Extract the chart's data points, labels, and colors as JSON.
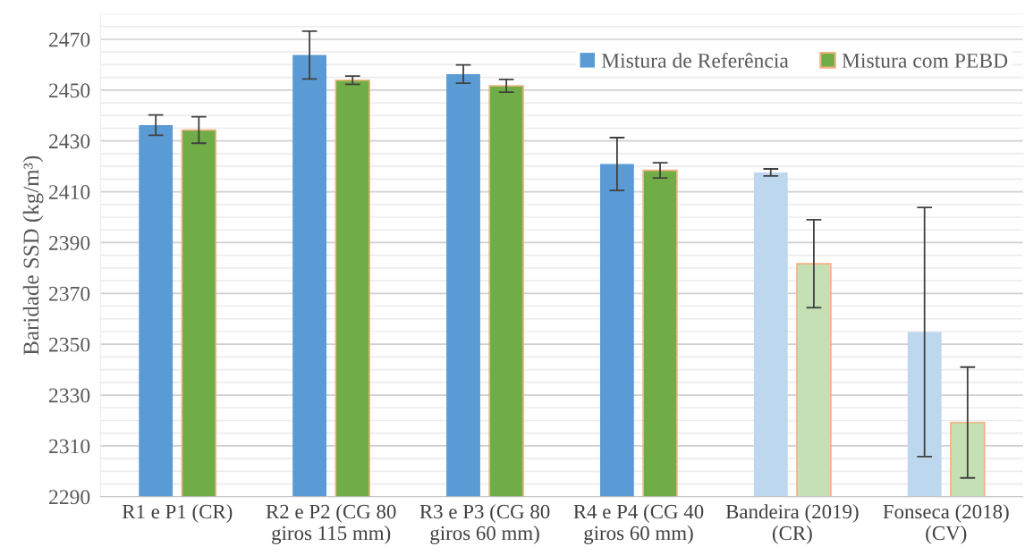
{
  "chart_data": {
    "type": "bar",
    "ylabel": "Baridade SSD (kg/m³)",
    "categories": [
      "R1 e P1 (CR)",
      "R2 e P2 (CG 80\ngiros 115 mm)",
      "R3 e P3 (CG 80\ngiros 60 mm)",
      "R4 e P4 (CG 40\ngiros 60 mm)",
      "Bandeira (2019)\n(CR)",
      "Fonseca (2018)\n(CV)"
    ],
    "series": [
      {
        "name": "Mistura de Referência",
        "color": "#5b9bd5",
        "colors": [
          "#5b9bd5",
          "#5b9bd5",
          "#5b9bd5",
          "#5b9bd5",
          "#bdd7ee",
          "#bdd7ee"
        ],
        "values": [
          2436.2,
          2463.8,
          2456.3,
          2420.9,
          2417.6,
          2354.8
        ],
        "errors": [
          4,
          9.4,
          3.6,
          10.4,
          1.4,
          49
        ]
      },
      {
        "name": "Mistura com PEBD",
        "color": "#70ad47",
        "colors": [
          "#70ad47",
          "#70ad47",
          "#70ad47",
          "#70ad47",
          "#c5e0b4",
          "#c5e0b4"
        ],
        "values": [
          2434.3,
          2453.9,
          2451.7,
          2418.4,
          2381.7,
          2319.2
        ],
        "errors": [
          5.2,
          1.6,
          2.5,
          3,
          17.3,
          21.8
        ]
      }
    ],
    "ylim": [
      2290,
      2480
    ],
    "yticks": [
      2290,
      {
        "value": 2295,
        "label": null
      },
      {
        "value": 2300,
        "label": null
      },
      {
        "value": 2305,
        "label": null
      },
      2310,
      {
        "value": 2315,
        "label": null
      },
      {
        "value": 2320,
        "label": null
      },
      {
        "value": 2325,
        "label": null
      },
      2330,
      {
        "value": 2335,
        "label": null
      },
      {
        "value": 2340,
        "label": null
      },
      {
        "value": 2345,
        "label": null
      },
      2350,
      {
        "value": 2355,
        "label": null
      },
      {
        "value": 2360,
        "label": null
      },
      {
        "value": 2365,
        "label": null
      },
      2370,
      {
        "value": 2375,
        "label": null
      },
      {
        "value": 2380,
        "label": null
      },
      {
        "value": 2385,
        "label": null
      },
      2390,
      {
        "value": 2395,
        "label": null
      },
      {
        "value": 2400,
        "label": null
      },
      {
        "value": 2405,
        "label": null
      },
      2410,
      {
        "value": 2415,
        "label": null
      },
      {
        "value": 2420,
        "label": null
      },
      {
        "value": 2425,
        "label": null
      },
      2430,
      {
        "value": 2435,
        "label": null
      },
      {
        "value": 2440,
        "label": null
      },
      {
        "value": 2445,
        "label": null
      },
      2450,
      {
        "value": 2455,
        "label": null
      },
      {
        "value": 2460,
        "label": null
      },
      {
        "value": 2465,
        "label": null
      },
      2470,
      {
        "value": 2475,
        "label": null
      },
      {
        "value": 2480,
        "label": null
      }
    ],
    "grid": "y",
    "legend": "top right"
  }
}
